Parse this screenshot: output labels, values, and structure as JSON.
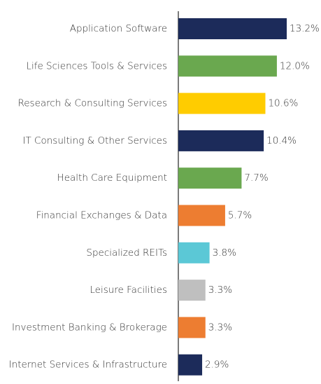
{
  "chart_data": {
    "type": "barh",
    "categories": [
      "Application Software",
      "Life Sciences Tools & Services",
      "Research & Consulting Services",
      "IT Consulting & Other Services",
      "Health Care Equipment",
      "Financial Exchanges & Data",
      "Specialized REITs",
      "Leisure Facilities",
      "Investment Banking & Brokerage",
      "Internet Services & Infrastructure"
    ],
    "values": [
      13.2,
      12.0,
      10.6,
      10.4,
      7.7,
      5.7,
      3.8,
      3.3,
      3.3,
      2.9
    ],
    "value_labels": [
      "13.2%",
      "12.0%",
      "10.6%",
      "10.4%",
      "7.7%",
      "5.7%",
      "3.8%",
      "3.3%",
      "3.3%",
      "2.9%"
    ],
    "colors": [
      "#1c2b5a",
      "#6aa84f",
      "#ffcc00",
      "#1c2b5a",
      "#6aa84f",
      "#ed7d31",
      "#5bc8d6",
      "#bfbfbf",
      "#ed7d31",
      "#1c2b5a"
    ]
  }
}
